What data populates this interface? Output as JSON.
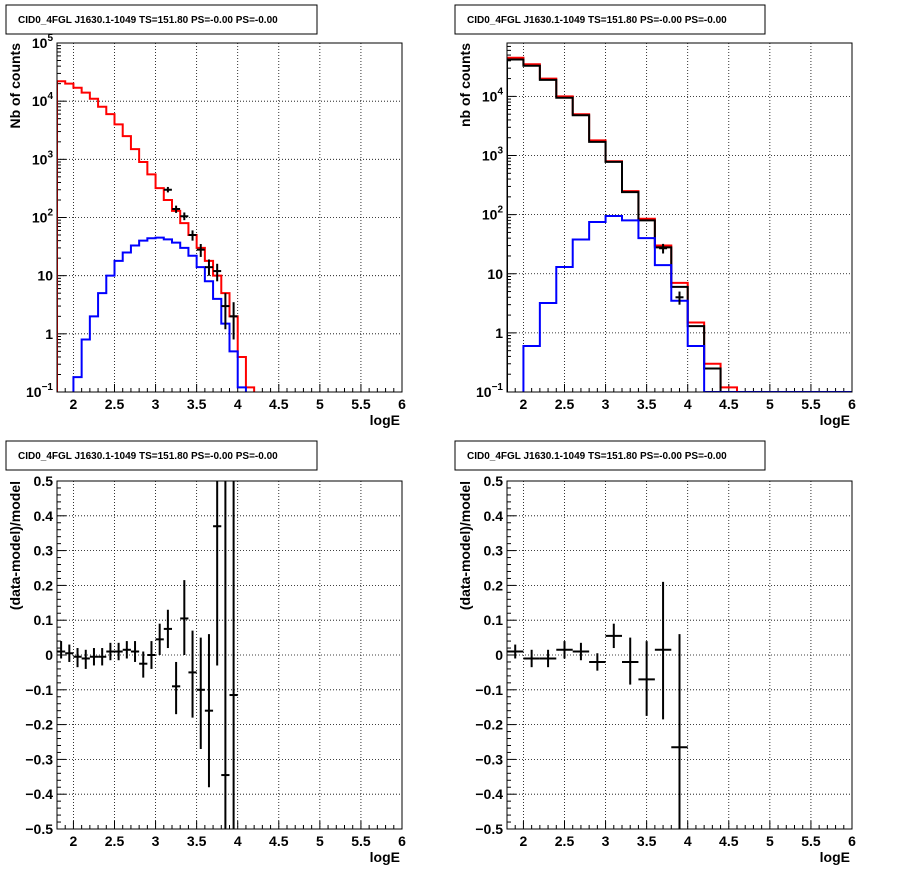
{
  "chart_data": [
    {
      "id": "p1",
      "type": "line",
      "title": "CID0_4FGL J1630.1-1049 TS=151.80 PS=-0.00 PS=-0.00",
      "xlabel": "logE",
      "ylabel": "Nb of counts",
      "xlim": [
        1.8,
        6.0
      ],
      "ylim": [
        0.1,
        100000
      ],
      "yscale": "log",
      "grid": true,
      "xticks": [
        "2",
        "2.5",
        "3",
        "3.5",
        "4",
        "4.5",
        "5",
        "5.5",
        "6"
      ],
      "yticks": [
        "10^-1",
        "1",
        "10",
        "10^2",
        "10^3",
        "10^4",
        "10^5"
      ],
      "bin_edges": [
        1.8,
        1.9,
        2.0,
        2.1,
        2.2,
        2.3,
        2.4,
        2.5,
        2.6,
        2.7,
        2.8,
        2.9,
        3.0,
        3.1,
        3.2,
        3.3,
        3.4,
        3.5,
        3.6,
        3.7,
        3.8,
        3.9,
        4.0,
        4.1,
        4.2,
        4.3,
        4.4,
        4.5,
        4.6,
        4.7,
        4.8,
        4.9,
        5.0,
        5.1,
        5.2,
        5.3,
        5.4,
        5.5,
        5.6,
        5.7,
        5.8,
        5.9,
        6.0
      ],
      "series": [
        {
          "color": "#ff0000",
          "style": "step",
          "values": [
            22000,
            20000,
            17000,
            14000,
            11000,
            8000,
            6000,
            4000,
            2500,
            1500,
            900,
            550,
            320,
            200,
            130,
            80,
            50,
            30,
            18,
            10,
            5,
            2,
            0.4,
            0.12,
            0.05,
            0,
            0,
            0,
            0,
            0,
            0,
            0,
            0,
            0,
            0,
            0,
            0,
            0,
            0,
            0,
            0,
            0
          ]
        },
        {
          "color": "#0000ff",
          "style": "step",
          "values": [
            0,
            0.06,
            0.18,
            0.8,
            2,
            5,
            10,
            18,
            25,
            33,
            40,
            44,
            45,
            42,
            37,
            30,
            22,
            14,
            8,
            4,
            1.5,
            0.5,
            0.12,
            0.07,
            0.07,
            0.07,
            0.07,
            0.07,
            0.07,
            0.07,
            0.07,
            0.07,
            0.07,
            0.07,
            0.07,
            0.07,
            0.07,
            0.07,
            0.07,
            0.07,
            0.07,
            0.07
          ]
        }
      ],
      "points": [
        {
          "x": 3.15,
          "y": 300,
          "ylo": 270,
          "yhi": 335
        },
        {
          "x": 3.25,
          "y": 140,
          "ylo": 120,
          "yhi": 160
        },
        {
          "x": 3.35,
          "y": 105,
          "ylo": 90,
          "yhi": 122
        },
        {
          "x": 3.45,
          "y": 50,
          "ylo": 40,
          "yhi": 60
        },
        {
          "x": 3.55,
          "y": 28,
          "ylo": 21,
          "yhi": 35
        },
        {
          "x": 3.65,
          "y": 14,
          "ylo": 10,
          "yhi": 19
        },
        {
          "x": 3.75,
          "y": 12,
          "ylo": 8,
          "yhi": 16
        },
        {
          "x": 3.85,
          "y": 3,
          "ylo": 1.2,
          "yhi": 5
        },
        {
          "x": 3.95,
          "y": 2,
          "ylo": 0.8,
          "yhi": 3.5
        }
      ]
    },
    {
      "id": "p2",
      "type": "line",
      "title": "CID0_4FGL J1630.1-1049 TS=151.80 PS=-0.00 PS=-0.00",
      "xlabel": "logE",
      "ylabel": "nb of counts",
      "xlim": [
        1.8,
        6.0
      ],
      "ylim": [
        0.1,
        80000
      ],
      "yscale": "log",
      "grid": true,
      "xticks": [
        "2",
        "2.5",
        "3",
        "3.5",
        "4",
        "4.5",
        "5",
        "5.5",
        "6"
      ],
      "yticks": [
        "10^-1",
        "1",
        "10",
        "10^2",
        "10^3",
        "10^4"
      ],
      "bin_edges": [
        1.8,
        2.0,
        2.2,
        2.4,
        2.6,
        2.8,
        3.0,
        3.2,
        3.4,
        3.6,
        3.8,
        4.0,
        4.2,
        4.4,
        4.6,
        4.8,
        5.0,
        5.2,
        5.4,
        5.6,
        5.8,
        6.0
      ],
      "series": [
        {
          "color": "#ff0000",
          "style": "step",
          "values": [
            45000,
            35000,
            20000,
            10000,
            5000,
            1800,
            800,
            250,
            85,
            30,
            7,
            1.5,
            0.3,
            0.12,
            0,
            0,
            0,
            0,
            0,
            0,
            0
          ]
        },
        {
          "color": "#000000",
          "style": "step",
          "values": [
            42000,
            33000,
            19000,
            9500,
            4800,
            1700,
            780,
            240,
            80,
            28,
            6,
            1.3,
            0.25,
            0,
            0,
            0,
            0,
            0,
            0,
            0,
            0
          ]
        },
        {
          "color": "#0000ff",
          "style": "step",
          "values": [
            0,
            0.6,
            3.2,
            13,
            38,
            75,
            95,
            80,
            40,
            14,
            3.5,
            0.6,
            0.1,
            0.1,
            0.1,
            0.1,
            0.1,
            0.1,
            0.1,
            0.1,
            0.1
          ]
        }
      ],
      "points": [
        {
          "x": 3.7,
          "y": 27,
          "ylo": 22,
          "yhi": 32
        },
        {
          "x": 3.9,
          "y": 4,
          "ylo": 3,
          "yhi": 5
        }
      ]
    },
    {
      "id": "p3",
      "type": "scatter",
      "title": "CID0_4FGL J1630.1-1049 TS=151.80 PS=-0.00 PS=-0.00",
      "xlabel": "logE",
      "ylabel": "(data-model)/model",
      "xlim": [
        1.8,
        6.0
      ],
      "ylim": [
        -0.5,
        0.5
      ],
      "grid": true,
      "xticks": [
        "2",
        "2.5",
        "3",
        "3.5",
        "4",
        "4.5",
        "5",
        "5.5",
        "6"
      ],
      "yticks": [
        "−0.5",
        "−0.4",
        "−0.3",
        "−0.2",
        "−0.1",
        "0",
        "0.1",
        "0.2",
        "0.3",
        "0.4",
        "0.5"
      ],
      "points": [
        {
          "x": 1.85,
          "y": 0.01,
          "xerr": 0.05,
          "ylo": -0.01,
          "yhi": 0.04
        },
        {
          "x": 1.95,
          "y": 0.005,
          "xerr": 0.05,
          "ylo": -0.02,
          "yhi": 0.03
        },
        {
          "x": 2.05,
          "y": -0.005,
          "xerr": 0.05,
          "ylo": -0.035,
          "yhi": 0.02
        },
        {
          "x": 2.15,
          "y": -0.01,
          "xerr": 0.05,
          "ylo": -0.04,
          "yhi": 0.015
        },
        {
          "x": 2.25,
          "y": -0.005,
          "xerr": 0.05,
          "ylo": -0.03,
          "yhi": 0.02
        },
        {
          "x": 2.35,
          "y": -0.005,
          "xerr": 0.05,
          "ylo": -0.03,
          "yhi": 0.02
        },
        {
          "x": 2.45,
          "y": 0.01,
          "xerr": 0.05,
          "ylo": -0.015,
          "yhi": 0.035
        },
        {
          "x": 2.55,
          "y": 0.01,
          "xerr": 0.05,
          "ylo": -0.015,
          "yhi": 0.035
        },
        {
          "x": 2.65,
          "y": 0.015,
          "xerr": 0.05,
          "ylo": -0.01,
          "yhi": 0.04
        },
        {
          "x": 2.75,
          "y": 0.01,
          "xerr": 0.05,
          "ylo": -0.02,
          "yhi": 0.04
        },
        {
          "x": 2.85,
          "y": -0.025,
          "xerr": 0.05,
          "ylo": -0.065,
          "yhi": 0.01
        },
        {
          "x": 2.95,
          "y": 0.0,
          "xerr": 0.05,
          "ylo": -0.04,
          "yhi": 0.04
        },
        {
          "x": 3.05,
          "y": 0.045,
          "xerr": 0.05,
          "ylo": 0.0,
          "yhi": 0.09
        },
        {
          "x": 3.15,
          "y": 0.075,
          "xerr": 0.05,
          "ylo": 0.02,
          "yhi": 0.13
        },
        {
          "x": 3.25,
          "y": -0.09,
          "xerr": 0.05,
          "ylo": -0.17,
          "yhi": -0.02
        },
        {
          "x": 3.35,
          "y": 0.105,
          "xerr": 0.05,
          "ylo": 0.0,
          "yhi": 0.215
        },
        {
          "x": 3.45,
          "y": -0.05,
          "xerr": 0.05,
          "ylo": -0.18,
          "yhi": 0.07
        },
        {
          "x": 3.55,
          "y": -0.1,
          "xerr": 0.05,
          "ylo": -0.27,
          "yhi": 0.05
        },
        {
          "x": 3.65,
          "y": -0.16,
          "xerr": 0.05,
          "ylo": -0.38,
          "yhi": 0.06
        },
        {
          "x": 3.75,
          "y": 0.37,
          "xerr": 0.05,
          "ylo": -0.03,
          "yhi": 0.5
        },
        {
          "x": 3.85,
          "y": -0.345,
          "xerr": 0.05,
          "ylo": -0.5,
          "yhi": 0.5
        },
        {
          "x": 3.95,
          "y": -0.115,
          "xerr": 0.05,
          "ylo": -0.5,
          "yhi": 0.5
        }
      ]
    },
    {
      "id": "p4",
      "type": "scatter",
      "title": "CID0_4FGL J1630.1-1049 TS=151.80 PS=-0.00 PS=-0.00",
      "xlabel": "logE",
      "ylabel": "(data-model)/model",
      "xlim": [
        1.8,
        6.0
      ],
      "ylim": [
        -0.5,
        0.5
      ],
      "grid": true,
      "xticks": [
        "2",
        "2.5",
        "3",
        "3.5",
        "4",
        "4.5",
        "5",
        "5.5",
        "6"
      ],
      "yticks": [
        "−0.5",
        "−0.4",
        "−0.3",
        "−0.2",
        "−0.1",
        "0",
        "0.1",
        "0.2",
        "0.3",
        "0.4",
        "0.5"
      ],
      "points": [
        {
          "x": 1.9,
          "y": 0.01,
          "xerr": 0.1,
          "ylo": -0.01,
          "yhi": 0.03
        },
        {
          "x": 2.1,
          "y": -0.01,
          "xerr": 0.1,
          "ylo": -0.035,
          "yhi": 0.015
        },
        {
          "x": 2.3,
          "y": -0.01,
          "xerr": 0.1,
          "ylo": -0.035,
          "yhi": 0.015
        },
        {
          "x": 2.5,
          "y": 0.015,
          "xerr": 0.1,
          "ylo": -0.01,
          "yhi": 0.04
        },
        {
          "x": 2.7,
          "y": 0.01,
          "xerr": 0.1,
          "ylo": -0.015,
          "yhi": 0.035
        },
        {
          "x": 2.9,
          "y": -0.02,
          "xerr": 0.1,
          "ylo": -0.045,
          "yhi": 0.005
        },
        {
          "x": 3.1,
          "y": 0.055,
          "xerr": 0.1,
          "ylo": 0.02,
          "yhi": 0.09
        },
        {
          "x": 3.3,
          "y": -0.02,
          "xerr": 0.1,
          "ylo": -0.085,
          "yhi": 0.05
        },
        {
          "x": 3.5,
          "y": -0.07,
          "xerr": 0.1,
          "ylo": -0.175,
          "yhi": 0.04
        },
        {
          "x": 3.7,
          "y": 0.015,
          "xerr": 0.1,
          "ylo": -0.185,
          "yhi": 0.21
        },
        {
          "x": 3.9,
          "y": -0.265,
          "xerr": 0.1,
          "ylo": -0.5,
          "yhi": 0.06
        }
      ]
    }
  ]
}
